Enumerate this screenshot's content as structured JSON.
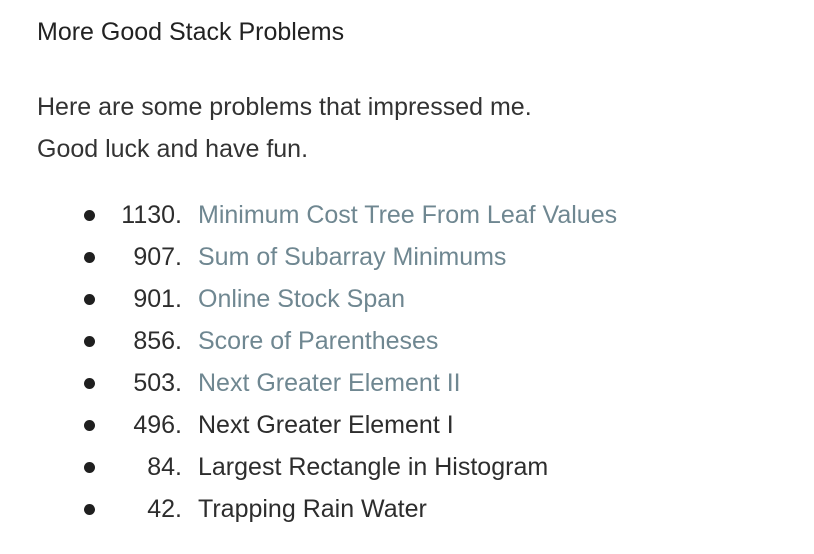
{
  "title": "More Good Stack Problems",
  "intro": {
    "line1": "Here are some problems that impressed me.",
    "line2": "Good luck and have fun."
  },
  "problems": [
    {
      "number": "1130.",
      "name": "Minimum Cost Tree From Leaf Values",
      "is_link": true
    },
    {
      "number": "907.",
      "name": "Sum of Subarray Minimums",
      "is_link": true
    },
    {
      "number": "901.",
      "name": "Online Stock Span",
      "is_link": true
    },
    {
      "number": "856.",
      "name": "Score of Parentheses",
      "is_link": true
    },
    {
      "number": "503.",
      "name": "Next Greater Element II",
      "is_link": true
    },
    {
      "number": "496.",
      "name": "Next Greater Element I",
      "is_link": false
    },
    {
      "number": "84.",
      "name": "Largest Rectangle in Histogram",
      "is_link": false
    },
    {
      "number": "42.",
      "name": "Trapping Rain Water",
      "is_link": false
    }
  ],
  "colors": {
    "link": "#6f8791",
    "text": "#2d2d2d"
  }
}
